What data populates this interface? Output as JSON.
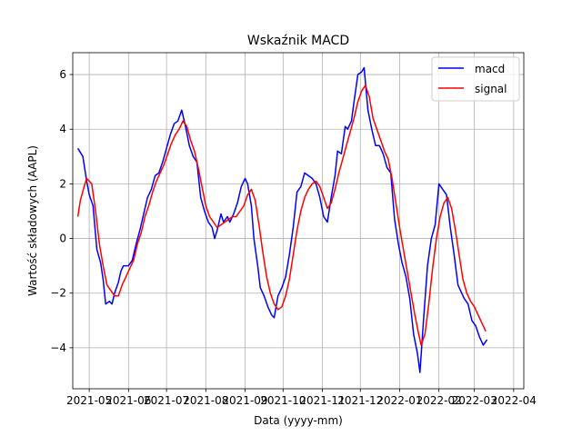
{
  "chart_data": {
    "type": "line",
    "title": "Wskaźnik MACD",
    "xlabel": "Data (yyyy-mm)",
    "ylabel": "Wartość składowych (AAPL)",
    "xlim": [
      "2021-04-18",
      "2022-04-09"
    ],
    "ylim": [
      -5.5,
      6.8
    ],
    "grid": true,
    "legend_position": "top-right",
    "x_ticks": [
      "2021-05",
      "2021-06",
      "2021-07",
      "2021-08",
      "2021-09",
      "2021-10",
      "2021-11",
      "2021-12",
      "2022-01",
      "2022-02",
      "2022-03",
      "2022-04"
    ],
    "y_ticks": [
      -4,
      -2,
      0,
      2,
      4,
      6
    ],
    "series": [
      {
        "name": "macd",
        "color": "#0000ff",
        "points": [
          [
            "2021-04-22",
            3.3
          ],
          [
            "2021-04-26",
            3.0
          ],
          [
            "2021-04-29",
            2.1
          ],
          [
            "2021-05-01",
            1.6
          ],
          [
            "2021-05-04",
            1.2
          ],
          [
            "2021-05-07",
            -0.4
          ],
          [
            "2021-05-10",
            -0.9
          ],
          [
            "2021-05-12",
            -1.5
          ],
          [
            "2021-05-14",
            -2.4
          ],
          [
            "2021-05-17",
            -2.3
          ],
          [
            "2021-05-19",
            -2.4
          ],
          [
            "2021-05-21",
            -2.0
          ],
          [
            "2021-05-24",
            -1.6
          ],
          [
            "2021-05-26",
            -1.2
          ],
          [
            "2021-05-28",
            -1.0
          ],
          [
            "2021-06-01",
            -1.0
          ],
          [
            "2021-06-04",
            -0.8
          ],
          [
            "2021-06-07",
            -0.2
          ],
          [
            "2021-06-10",
            0.3
          ],
          [
            "2021-06-13",
            0.9
          ],
          [
            "2021-06-16",
            1.5
          ],
          [
            "2021-06-19",
            1.8
          ],
          [
            "2021-06-22",
            2.3
          ],
          [
            "2021-06-25",
            2.4
          ],
          [
            "2021-06-28",
            2.8
          ],
          [
            "2021-07-01",
            3.3
          ],
          [
            "2021-07-04",
            3.8
          ],
          [
            "2021-07-07",
            4.2
          ],
          [
            "2021-07-10",
            4.3
          ],
          [
            "2021-07-13",
            4.7
          ],
          [
            "2021-07-16",
            4.1
          ],
          [
            "2021-07-19",
            3.4
          ],
          [
            "2021-07-22",
            3.0
          ],
          [
            "2021-07-25",
            2.8
          ],
          [
            "2021-07-28",
            1.5
          ],
          [
            "2021-07-31",
            1.0
          ],
          [
            "2021-08-03",
            0.6
          ],
          [
            "2021-08-06",
            0.4
          ],
          [
            "2021-08-08",
            0.0
          ],
          [
            "2021-08-10",
            0.3
          ],
          [
            "2021-08-13",
            0.9
          ],
          [
            "2021-08-15",
            0.6
          ],
          [
            "2021-08-18",
            0.8
          ],
          [
            "2021-08-20",
            0.6
          ],
          [
            "2021-08-23",
            0.9
          ],
          [
            "2021-08-26",
            1.3
          ],
          [
            "2021-08-29",
            1.9
          ],
          [
            "2021-09-01",
            2.2
          ],
          [
            "2021-09-03",
            2.0
          ],
          [
            "2021-09-06",
            1.2
          ],
          [
            "2021-09-08",
            0.0
          ],
          [
            "2021-09-11",
            -1.0
          ],
          [
            "2021-09-13",
            -1.8
          ],
          [
            "2021-09-16",
            -2.1
          ],
          [
            "2021-09-19",
            -2.5
          ],
          [
            "2021-09-22",
            -2.8
          ],
          [
            "2021-09-24",
            -2.9
          ],
          [
            "2021-09-27",
            -2.1
          ],
          [
            "2021-09-30",
            -1.8
          ],
          [
            "2021-10-03",
            -1.4
          ],
          [
            "2021-10-06",
            -0.6
          ],
          [
            "2021-10-09",
            0.4
          ],
          [
            "2021-10-12",
            1.7
          ],
          [
            "2021-10-15",
            1.9
          ],
          [
            "2021-10-18",
            2.4
          ],
          [
            "2021-10-21",
            2.3
          ],
          [
            "2021-10-24",
            2.2
          ],
          [
            "2021-10-27",
            2.0
          ],
          [
            "2021-10-30",
            1.5
          ],
          [
            "2021-11-02",
            0.8
          ],
          [
            "2021-11-05",
            0.6
          ],
          [
            "2021-11-08",
            1.5
          ],
          [
            "2021-11-11",
            2.3
          ],
          [
            "2021-11-13",
            3.2
          ],
          [
            "2021-11-16",
            3.1
          ],
          [
            "2021-11-19",
            4.1
          ],
          [
            "2021-11-21",
            4.0
          ],
          [
            "2021-11-24",
            4.3
          ],
          [
            "2021-11-26",
            5.0
          ],
          [
            "2021-11-29",
            6.0
          ],
          [
            "2021-12-02",
            6.1
          ],
          [
            "2021-12-04",
            6.25
          ],
          [
            "2021-12-07",
            4.7
          ],
          [
            "2021-12-10",
            4.0
          ],
          [
            "2021-12-13",
            3.4
          ],
          [
            "2021-12-16",
            3.4
          ],
          [
            "2021-12-19",
            3.1
          ],
          [
            "2021-12-22",
            2.6
          ],
          [
            "2021-12-25",
            2.4
          ],
          [
            "2021-12-28",
            0.7
          ],
          [
            "2021-12-31",
            -0.2
          ],
          [
            "2022-01-03",
            -0.9
          ],
          [
            "2022-01-06",
            -1.4
          ],
          [
            "2022-01-09",
            -2.2
          ],
          [
            "2022-01-12",
            -3.5
          ],
          [
            "2022-01-15",
            -4.2
          ],
          [
            "2022-01-17",
            -4.9
          ],
          [
            "2022-01-20",
            -2.9
          ],
          [
            "2022-01-23",
            -1.0
          ],
          [
            "2022-01-26",
            0.0
          ],
          [
            "2022-01-29",
            0.5
          ],
          [
            "2022-02-01",
            2.0
          ],
          [
            "2022-02-04",
            1.8
          ],
          [
            "2022-02-07",
            1.6
          ],
          [
            "2022-02-10",
            0.4
          ],
          [
            "2022-02-13",
            -0.6
          ],
          [
            "2022-02-16",
            -1.7
          ],
          [
            "2022-02-19",
            -2.0
          ],
          [
            "2022-02-21",
            -2.2
          ],
          [
            "2022-02-24",
            -2.4
          ],
          [
            "2022-02-27",
            -3.0
          ],
          [
            "2022-03-02",
            -3.2
          ],
          [
            "2022-03-05",
            -3.6
          ],
          [
            "2022-03-08",
            -3.9
          ],
          [
            "2022-03-11",
            -3.7
          ]
        ]
      },
      {
        "name": "signal",
        "color": "#ff0000",
        "points": [
          [
            "2021-04-22",
            0.8
          ],
          [
            "2021-04-24",
            1.4
          ],
          [
            "2021-04-27",
            1.9
          ],
          [
            "2021-04-29",
            2.2
          ],
          [
            "2021-05-03",
            2.0
          ],
          [
            "2021-05-06",
            1.0
          ],
          [
            "2021-05-09",
            -0.2
          ],
          [
            "2021-05-12",
            -1.0
          ],
          [
            "2021-05-15",
            -1.7
          ],
          [
            "2021-05-18",
            -1.9
          ],
          [
            "2021-05-21",
            -2.1
          ],
          [
            "2021-05-24",
            -2.1
          ],
          [
            "2021-05-27",
            -1.7
          ],
          [
            "2021-05-30",
            -1.4
          ],
          [
            "2021-06-02",
            -1.1
          ],
          [
            "2021-06-05",
            -0.8
          ],
          [
            "2021-06-08",
            -0.2
          ],
          [
            "2021-06-11",
            0.2
          ],
          [
            "2021-06-14",
            0.8
          ],
          [
            "2021-06-17",
            1.2
          ],
          [
            "2021-06-20",
            1.7
          ],
          [
            "2021-06-23",
            2.1
          ],
          [
            "2021-06-26",
            2.4
          ],
          [
            "2021-06-29",
            2.7
          ],
          [
            "2021-07-02",
            3.1
          ],
          [
            "2021-07-05",
            3.5
          ],
          [
            "2021-07-08",
            3.8
          ],
          [
            "2021-07-11",
            4.0
          ],
          [
            "2021-07-14",
            4.3
          ],
          [
            "2021-07-17",
            4.1
          ],
          [
            "2021-07-20",
            3.6
          ],
          [
            "2021-07-23",
            3.2
          ],
          [
            "2021-07-26",
            2.6
          ],
          [
            "2021-07-29",
            1.9
          ],
          [
            "2021-08-01",
            1.2
          ],
          [
            "2021-08-04",
            0.8
          ],
          [
            "2021-08-07",
            0.6
          ],
          [
            "2021-08-10",
            0.4
          ],
          [
            "2021-08-13",
            0.5
          ],
          [
            "2021-08-16",
            0.6
          ],
          [
            "2021-08-19",
            0.7
          ],
          [
            "2021-08-22",
            0.8
          ],
          [
            "2021-08-25",
            0.8
          ],
          [
            "2021-08-28",
            1.0
          ],
          [
            "2021-08-31",
            1.2
          ],
          [
            "2021-09-03",
            1.6
          ],
          [
            "2021-09-06",
            1.8
          ],
          [
            "2021-09-09",
            1.4
          ],
          [
            "2021-09-12",
            0.5
          ],
          [
            "2021-09-15",
            -0.5
          ],
          [
            "2021-09-18",
            -1.4
          ],
          [
            "2021-09-21",
            -2.0
          ],
          [
            "2021-09-24",
            -2.4
          ],
          [
            "2021-09-27",
            -2.6
          ],
          [
            "2021-09-30",
            -2.5
          ],
          [
            "2021-10-03",
            -2.1
          ],
          [
            "2021-10-06",
            -1.5
          ],
          [
            "2021-10-09",
            -0.6
          ],
          [
            "2021-10-12",
            0.3
          ],
          [
            "2021-10-15",
            1.0
          ],
          [
            "2021-10-18",
            1.5
          ],
          [
            "2021-10-21",
            1.8
          ],
          [
            "2021-10-24",
            2.0
          ],
          [
            "2021-10-27",
            2.1
          ],
          [
            "2021-10-30",
            1.9
          ],
          [
            "2021-11-02",
            1.5
          ],
          [
            "2021-11-05",
            1.1
          ],
          [
            "2021-11-08",
            1.3
          ],
          [
            "2021-11-11",
            1.8
          ],
          [
            "2021-11-14",
            2.4
          ],
          [
            "2021-11-17",
            2.9
          ],
          [
            "2021-11-20",
            3.4
          ],
          [
            "2021-11-23",
            3.9
          ],
          [
            "2021-11-26",
            4.4
          ],
          [
            "2021-11-29",
            5.0
          ],
          [
            "2021-12-02",
            5.4
          ],
          [
            "2021-12-05",
            5.6
          ],
          [
            "2021-12-08",
            5.2
          ],
          [
            "2021-12-11",
            4.4
          ],
          [
            "2021-12-14",
            4.0
          ],
          [
            "2021-12-17",
            3.6
          ],
          [
            "2021-12-20",
            3.2
          ],
          [
            "2021-12-23",
            2.9
          ],
          [
            "2021-12-26",
            2.2
          ],
          [
            "2021-12-29",
            1.3
          ],
          [
            "2022-01-01",
            0.4
          ],
          [
            "2022-01-04",
            -0.4
          ],
          [
            "2022-01-07",
            -1.2
          ],
          [
            "2022-01-10",
            -2.0
          ],
          [
            "2022-01-13",
            -2.8
          ],
          [
            "2022-01-16",
            -3.5
          ],
          [
            "2022-01-18",
            -3.9
          ],
          [
            "2022-01-21",
            -3.5
          ],
          [
            "2022-01-24",
            -2.4
          ],
          [
            "2022-01-27",
            -1.1
          ],
          [
            "2022-01-30",
            0.0
          ],
          [
            "2022-02-02",
            0.8
          ],
          [
            "2022-02-05",
            1.3
          ],
          [
            "2022-02-08",
            1.5
          ],
          [
            "2022-02-11",
            1.1
          ],
          [
            "2022-02-14",
            0.3
          ],
          [
            "2022-02-17",
            -0.6
          ],
          [
            "2022-02-20",
            -1.5
          ],
          [
            "2022-02-23",
            -2.0
          ],
          [
            "2022-02-26",
            -2.3
          ],
          [
            "2022-03-01",
            -2.5
          ],
          [
            "2022-03-04",
            -2.8
          ],
          [
            "2022-03-07",
            -3.1
          ],
          [
            "2022-03-10",
            -3.4
          ]
        ]
      }
    ]
  }
}
